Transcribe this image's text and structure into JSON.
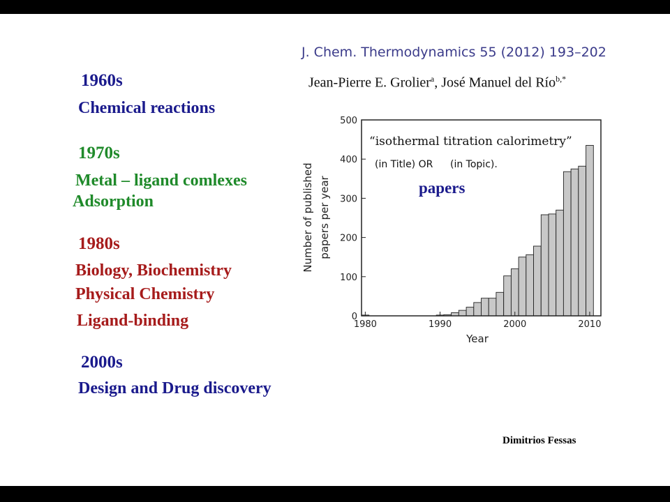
{
  "topics": {
    "d1960_title": "1960s",
    "d1960_item1": "Chemical reactions",
    "d1970_title": "1970s",
    "d1970_item1": "Metal – ligand comlexes",
    "d1970_item2": "Adsorption",
    "d1980_title": "1980s",
    "d1980_item1": "Biology, Biochemistry",
    "d1980_item2": "Physical Chemistry",
    "d1980_item3": "Ligand-binding",
    "d2000_title": "2000s",
    "d2000_item1": "Design and Drug discovery"
  },
  "reference": {
    "journal": "J. Chem. Thermodynamics 55 (2012) 193–202",
    "author1": "Jean-Pierre E. Grolier",
    "author1_sup": "a",
    "separator": ", ",
    "author2": "José Manuel del Río",
    "author2_sup": "b,*"
  },
  "footer": {
    "credit": "Dimitrios Fessas"
  },
  "colors": {
    "blue": "#1a1a8c",
    "green": "#1f8a2a",
    "red": "#a61b1b",
    "bar_fill": "#c8c8c8",
    "bar_stroke": "#222222"
  },
  "chart_data": {
    "type": "bar",
    "xlabel": "Year",
    "ylabel_line1": "Number of published",
    "ylabel_line2": "papers per year",
    "xlim": [
      1980,
      2011
    ],
    "ylim": [
      0,
      500
    ],
    "xticks": [
      1980,
      1990,
      2000,
      2010
    ],
    "yticks": [
      0,
      100,
      200,
      300,
      400,
      500
    ],
    "annotation_line1": "“isothermal titration calorimetry”",
    "annotation_line2a": "(in Title) OR",
    "annotation_line2b": "(in Topic).",
    "overlay_label": "papers",
    "x": [
      1980,
      1981,
      1982,
      1983,
      1984,
      1985,
      1986,
      1987,
      1988,
      1989,
      1990,
      1991,
      1992,
      1993,
      1994,
      1995,
      1996,
      1997,
      1998,
      1999,
      2000,
      2001,
      2002,
      2003,
      2004,
      2005,
      2006,
      2007,
      2008,
      2009,
      2010
    ],
    "values": [
      2,
      0,
      0,
      0,
      0,
      0,
      0,
      0,
      0,
      0,
      2,
      3,
      8,
      14,
      22,
      34,
      45,
      45,
      60,
      102,
      120,
      150,
      156,
      178,
      258,
      260,
      270,
      368,
      375,
      382,
      435
    ]
  }
}
